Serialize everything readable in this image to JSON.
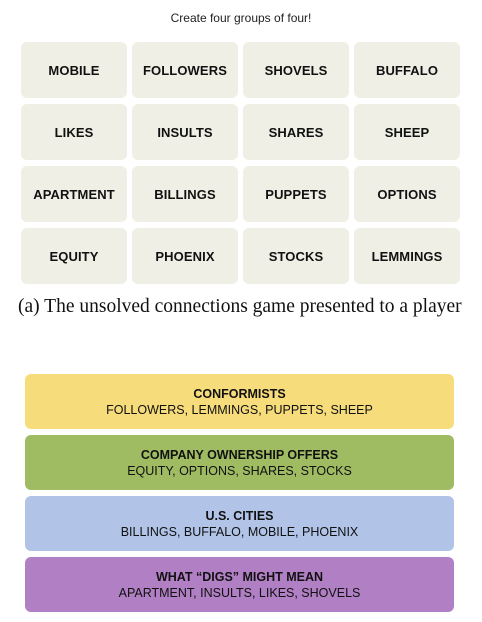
{
  "instructions": "Create four groups of four!",
  "tiles": [
    [
      "MOBILE",
      "FOLLOWERS",
      "SHOVELS",
      "BUFFALO"
    ],
    [
      "LIKES",
      "INSULTS",
      "SHARES",
      "SHEEP"
    ],
    [
      "APARTMENT",
      "BILLINGS",
      "PUPPETS",
      "OPTIONS"
    ],
    [
      "EQUITY",
      "PHOENIX",
      "STOCKS",
      "LEMMINGS"
    ]
  ],
  "tile_color": "#efefe6",
  "caption": "(a) The unsolved connections game presented to a player",
  "groups": [
    {
      "title": "CONFORMISTS",
      "members": "FOLLOWERS, LEMMINGS, PUPPETS, SHEEP",
      "color": "#f7dc7b"
    },
    {
      "title": "COMPANY OWNERSHIP OFFERS",
      "members": "EQUITY, OPTIONS, SHARES, STOCKS",
      "color": "#9fbc63"
    },
    {
      "title": "U.S. CITIES",
      "members": "BILLINGS, BUFFALO, MOBILE, PHOENIX",
      "color": "#b1c4e8"
    },
    {
      "title": "WHAT “DIGS” MIGHT MEAN",
      "members": "APARTMENT, INSULTS, LIKES, SHOVELS",
      "color": "#b07fc4"
    }
  ]
}
